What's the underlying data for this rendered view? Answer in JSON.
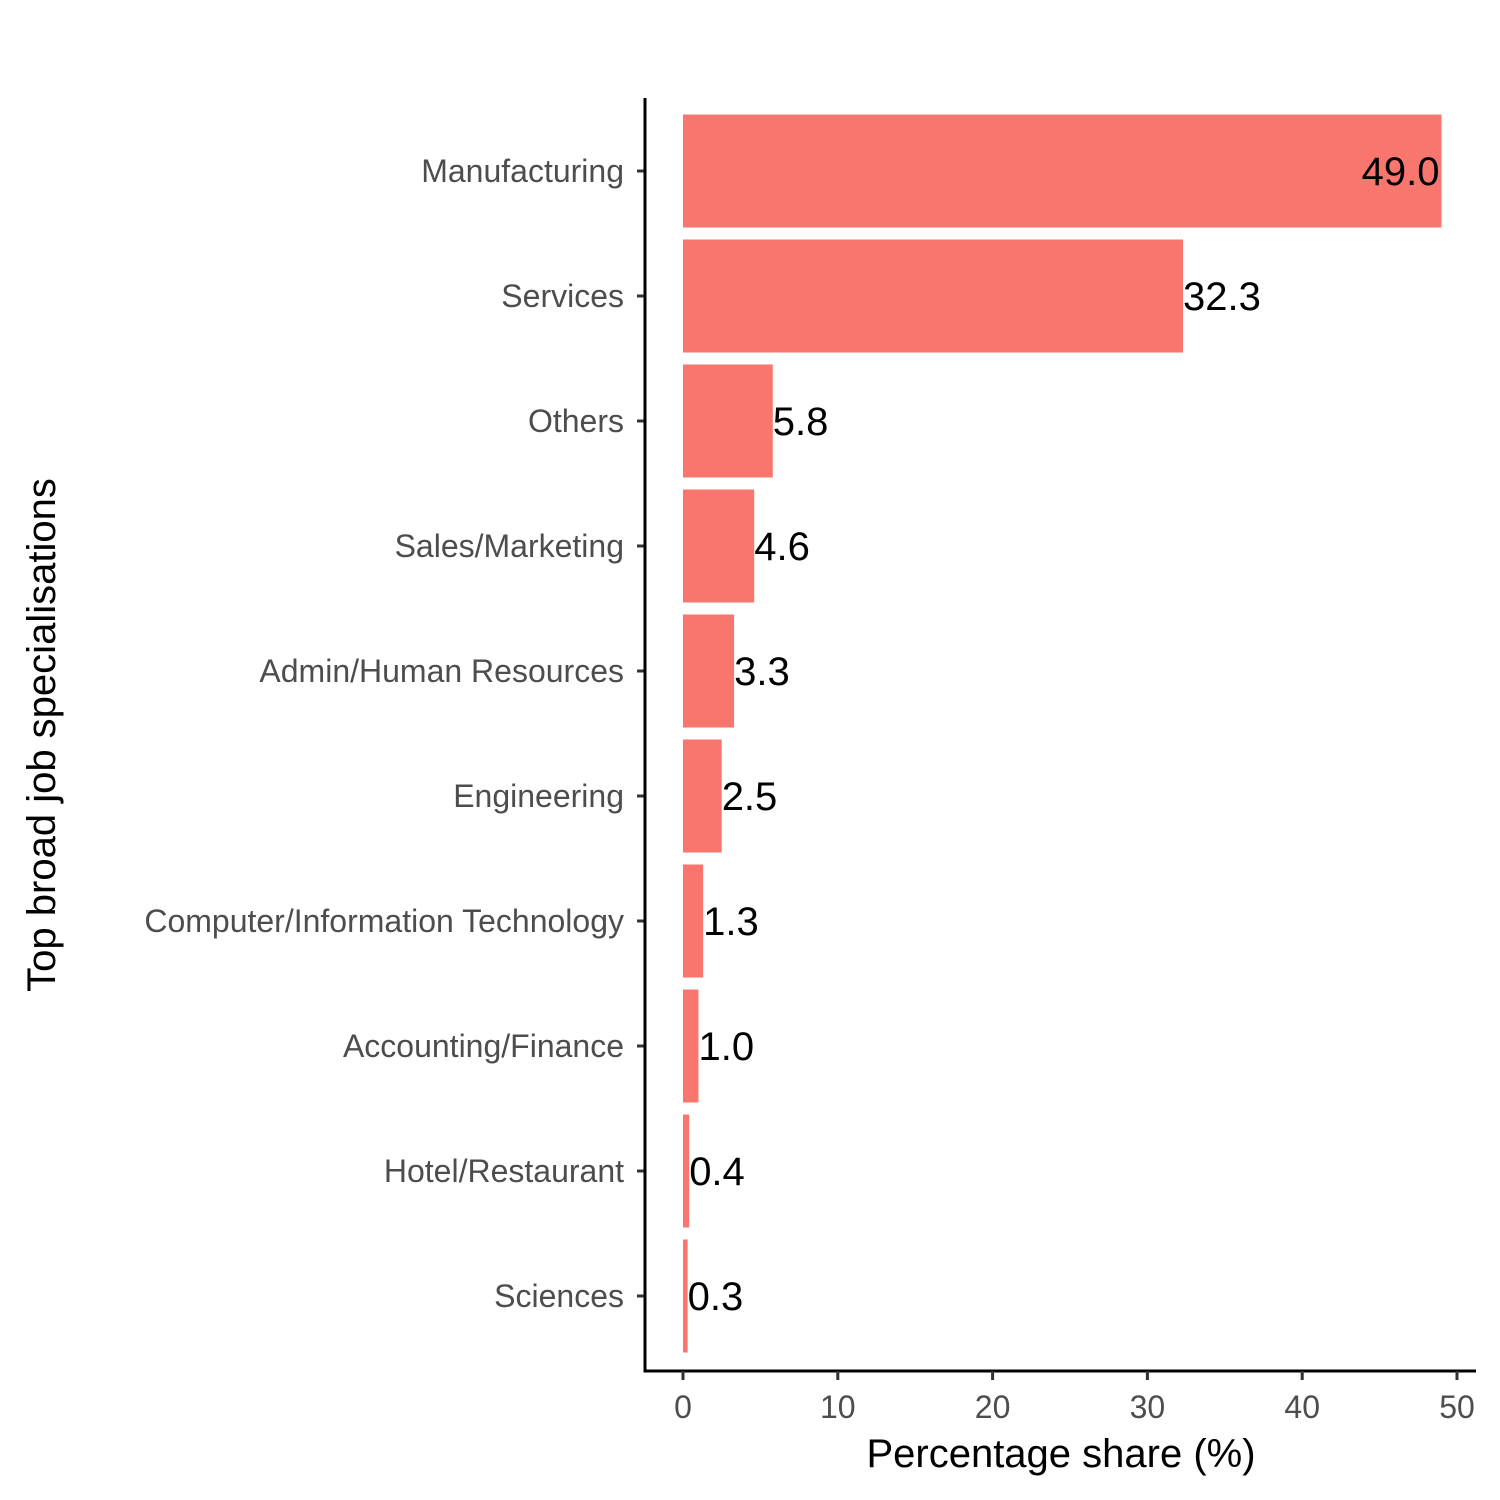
{
  "chart_data": {
    "type": "bar",
    "orientation": "horizontal",
    "categories": [
      "Manufacturing",
      "Services",
      "Others",
      "Sales/Marketing",
      "Admin/Human Resources",
      "Engineering",
      "Computer/Information Technology",
      "Accounting/Finance",
      "Hotel/Restaurant",
      "Sciences"
    ],
    "values": [
      49.0,
      32.3,
      5.8,
      4.6,
      3.3,
      2.5,
      1.3,
      1.0,
      0.4,
      0.3
    ],
    "data_labels": [
      "49.0",
      "32.3",
      "5.8",
      "4.6",
      "3.3",
      "2.5",
      "1.3",
      "1.0",
      "0.4",
      "0.3"
    ],
    "xlabel": "Percentage share (%)",
    "ylabel": "Top broad job specialisations",
    "xlim": [
      0,
      50
    ],
    "xticks": [
      0,
      10,
      20,
      30,
      40,
      50
    ],
    "grid": false,
    "legend": "none",
    "bar_color": "#F8766D"
  }
}
